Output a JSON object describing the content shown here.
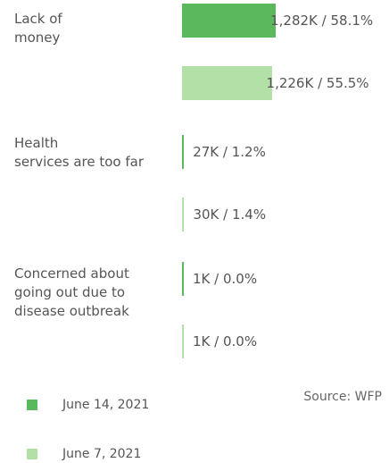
{
  "chart_data": {
    "type": "bar",
    "orientation": "horizontal",
    "categories": [
      "Lack of\nmoney",
      "Health\nservices are too far",
      "Concerned about\ngoing out due to\ndisease outbreak"
    ],
    "series": [
      {
        "name": "June 14, 2021",
        "color": "#5cb85c",
        "values": [
          1282,
          27,
          1
        ],
        "labels": [
          "1,282K / 58.1%",
          "27K / 1.2%",
          "1K / 0.0%"
        ]
      },
      {
        "name": "June 7, 2021",
        "color": "#b3e0a6",
        "values": [
          1226,
          30,
          1
        ],
        "labels": [
          "1,226K / 55.5%",
          "30K / 1.4%",
          "1K / 0.0%"
        ]
      }
    ],
    "legend_position": "bottom-left"
  },
  "source": "Source: WFP"
}
